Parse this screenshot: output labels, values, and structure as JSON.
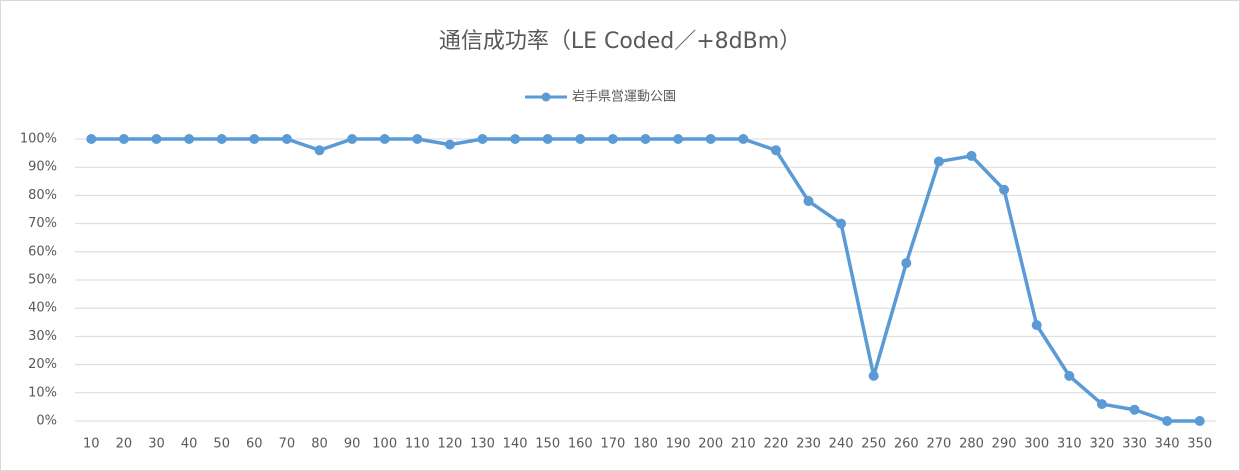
{
  "chart_data": {
    "type": "line",
    "title": "通信成功率（LE Coded／+8dBm）",
    "categories": [
      "10",
      "20",
      "30",
      "40",
      "50",
      "60",
      "70",
      "80",
      "90",
      "100",
      "110",
      "120",
      "130",
      "140",
      "150",
      "160",
      "170",
      "180",
      "190",
      "200",
      "210",
      "220",
      "230",
      "240",
      "250",
      "260",
      "270",
      "280",
      "290",
      "300",
      "310",
      "320",
      "330",
      "340",
      "350"
    ],
    "series": [
      {
        "name": "岩手県営運動公園",
        "color": "#5b9bd5",
        "values": [
          100,
          100,
          100,
          100,
          100,
          100,
          100,
          96,
          100,
          100,
          100,
          98,
          100,
          100,
          100,
          100,
          100,
          100,
          100,
          100,
          100,
          96,
          78,
          70,
          16,
          56,
          92,
          94,
          82,
          34,
          16,
          6,
          4,
          0,
          0
        ]
      }
    ],
    "ylim": [
      0,
      100
    ],
    "yticks": [
      {
        "value": 0,
        "label": "0%"
      },
      {
        "value": 10,
        "label": "10%"
      },
      {
        "value": 20,
        "label": "20%"
      },
      {
        "value": 30,
        "label": "30%"
      },
      {
        "value": 40,
        "label": "40%"
      },
      {
        "value": 50,
        "label": "50%"
      },
      {
        "value": 60,
        "label": "60%"
      },
      {
        "value": 70,
        "label": "70%"
      },
      {
        "value": 80,
        "label": "80%"
      },
      {
        "value": 90,
        "label": "90%"
      },
      {
        "value": 100,
        "label": "100%"
      }
    ],
    "grid": true,
    "legend": "top"
  }
}
